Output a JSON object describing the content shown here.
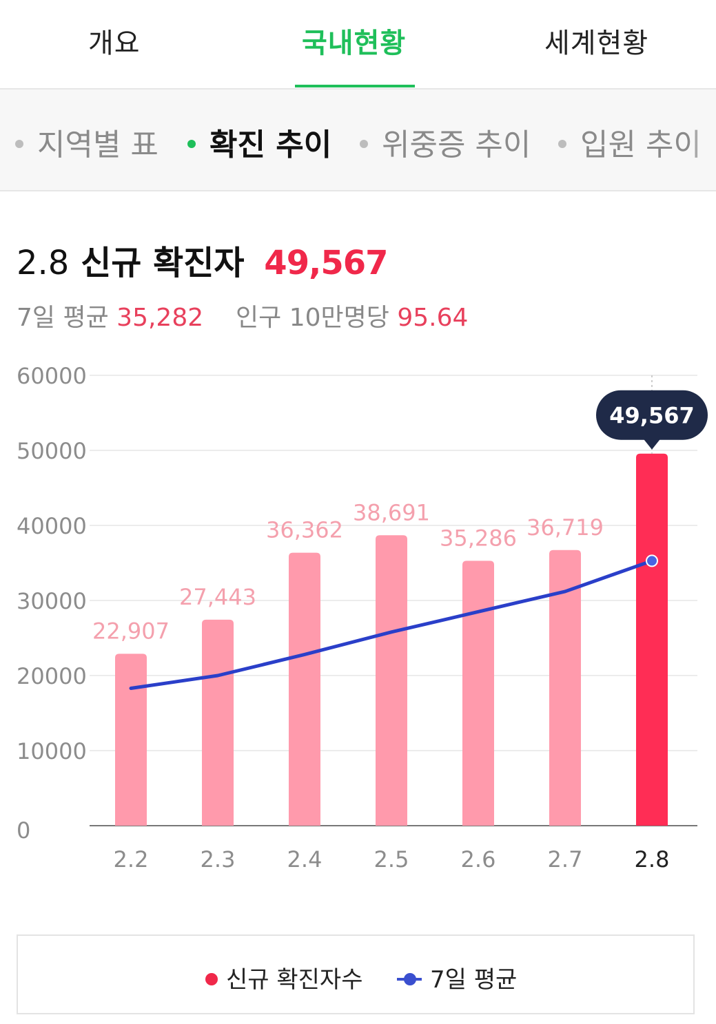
{
  "top_tabs": [
    "개요",
    "국내현황",
    "세계현황"
  ],
  "sub_tabs": [
    "지역별 표",
    "확진 추이",
    "위중증 추이",
    "입원 추이"
  ],
  "headline": {
    "date": "2.8",
    "label": "신규 확진자",
    "value": "49,567"
  },
  "stats": {
    "avg_label": "7일 평균",
    "avg_value": "35,282",
    "per_label": "인구 10만명당",
    "per_value": "95.64"
  },
  "legend": {
    "bars": "신규 확진자수",
    "line": "7일 평균"
  },
  "colors": {
    "accent": "#1fbf5a",
    "bar": "#ff9aac",
    "bar_highlight": "#ff2d55",
    "line": "#2a3fc9",
    "tooltip": "#1f2a48"
  },
  "chart_data": {
    "type": "bar",
    "categories": [
      "2.2",
      "2.3",
      "2.4",
      "2.5",
      "2.6",
      "2.7",
      "2.8"
    ],
    "series": [
      {
        "name": "신규 확진자수",
        "type": "bar",
        "values": [
          22907,
          27443,
          36362,
          38691,
          35286,
          36719,
          49567
        ]
      },
      {
        "name": "7일 평균",
        "type": "line",
        "values": [
          18300,
          20000,
          22800,
          25800,
          28500,
          31200,
          35282
        ]
      }
    ],
    "bar_labels": [
      "22,907",
      "27,443",
      "36,362",
      "38,691",
      "35,286",
      "36,719",
      "49,567"
    ],
    "y_ticks": [
      0,
      10000,
      20000,
      30000,
      40000,
      50000,
      60000
    ],
    "ylim": [
      0,
      60000
    ],
    "highlight_index": 6,
    "tooltip": "49,567"
  }
}
